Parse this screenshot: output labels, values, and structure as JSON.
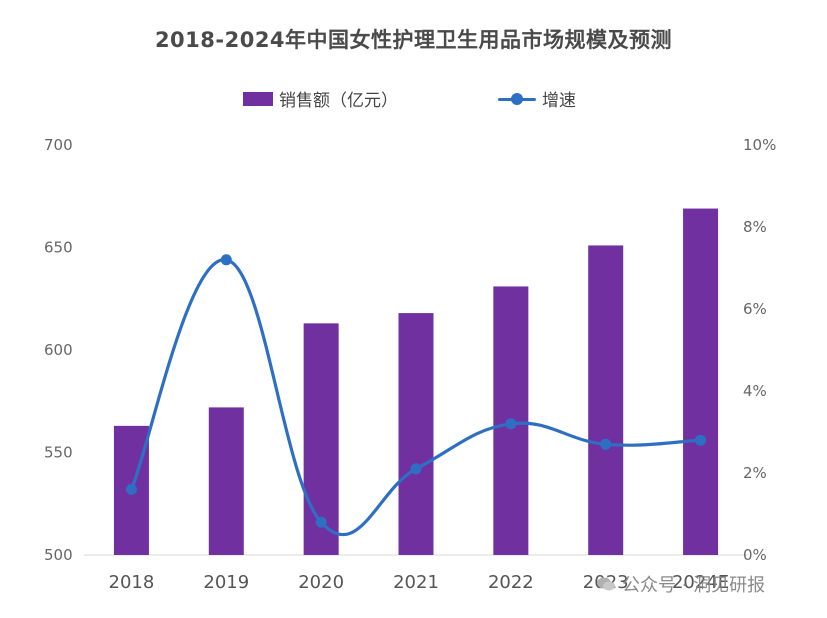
{
  "chart_data": {
    "type": "bar",
    "title": "2018-2024年中国女性护理卫生用品市场规模及预测",
    "categories": [
      "2018",
      "2019",
      "2020",
      "2021",
      "2022",
      "2023",
      "2024E"
    ],
    "series": [
      {
        "name": "销售额（亿元）",
        "type": "bar",
        "axis": "left",
        "color": "#7030a0",
        "values": [
          563,
          572,
          613,
          618,
          631,
          651,
          669
        ]
      },
      {
        "name": "增速",
        "type": "line",
        "axis": "right",
        "color": "#2e6fc4",
        "values": [
          1.6,
          7.2,
          0.8,
          2.1,
          3.2,
          2.7,
          2.8
        ],
        "unit": "%"
      }
    ],
    "y_left": {
      "ylim": [
        500,
        700
      ],
      "ticks": [
        "500",
        "550",
        "600",
        "650",
        "700"
      ]
    },
    "y_right": {
      "ylim": [
        0,
        10
      ],
      "ticks": [
        "0%",
        "2%",
        "4%",
        "6%",
        "8%",
        "10%"
      ]
    },
    "legend_position": "top-center",
    "grid": false
  },
  "watermark": {
    "text": "公众号 · 洞见研报",
    "icon": "wechat-icon"
  }
}
